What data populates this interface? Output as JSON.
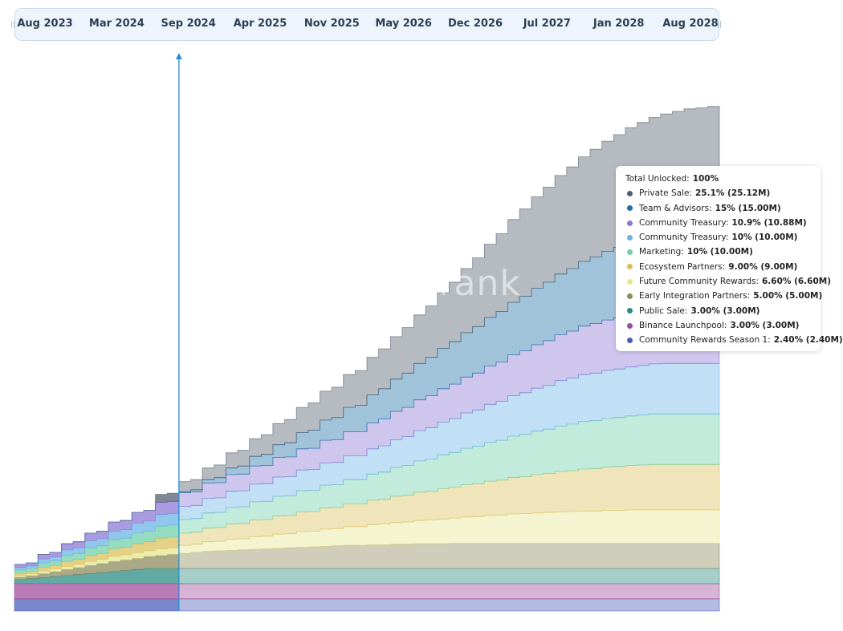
{
  "watermark": "cryptorank",
  "timeline": {
    "ticks": [
      "Aug 2023",
      "Mar 2024",
      "Sep 2024",
      "Apr 2025",
      "Nov 2025",
      "May 2026",
      "Dec 2026",
      "Jul 2027",
      "Jan 2028",
      "Aug 2028"
    ]
  },
  "tooltip": {
    "total_label": "Total Unlocked:",
    "total_value": "100%",
    "items": [
      {
        "label": "Private Sale:",
        "value": "25.1% (25.12M)",
        "color": "#525e6e"
      },
      {
        "label": "Team & Advisors:",
        "value": "15% (15.00M)",
        "color": "#1f6fa8"
      },
      {
        "label": "Community Treasury:",
        "value": "10.9% (10.88M)",
        "color": "#8a78d4"
      },
      {
        "label": "Community Treasury:",
        "value": "10% (10.00M)",
        "color": "#6cb3e6"
      },
      {
        "label": "Marketing:",
        "value": "10% (10.00M)",
        "color": "#6fcfaa"
      },
      {
        "label": "Ecosystem Partners:",
        "value": "9.00% (9.00M)",
        "color": "#dbbf5c"
      },
      {
        "label": "Future Community Rewards:",
        "value": "6.60% (6.60M)",
        "color": "#e5e68e"
      },
      {
        "label": "Early Integration Partners:",
        "value": "5.00% (5.00M)",
        "color": "#8a8a5e"
      },
      {
        "label": "Public Sale:",
        "value": "3.00% (3.00M)",
        "color": "#2a8a84"
      },
      {
        "label": "Binance Launchpool:",
        "value": "3.00% (3.00M)",
        "color": "#a04c9a"
      },
      {
        "label": "Community Rewards Season 1:",
        "value": "2.40% (2.40M)",
        "color": "#4a5db8"
      }
    ]
  },
  "chart_data": {
    "type": "area",
    "stacked": true,
    "step": true,
    "x_unit": "months since Aug 2023",
    "x_range": [
      0,
      60
    ],
    "y_unit": "tokens (M)",
    "y_range": [
      0,
      100
    ],
    "marker_month": 14,
    "series": [
      {
        "name": "Community Rewards Season 1",
        "color": "#4a5db8",
        "values": [
          2.4,
          2.4,
          2.4,
          2.4,
          2.4,
          2.4,
          2.4,
          2.4,
          2.4,
          2.4,
          2.4,
          2.4,
          2.4,
          2.4,
          2.4,
          2.4,
          2.4,
          2.4,
          2.4,
          2.4,
          2.4,
          2.4,
          2.4,
          2.4,
          2.4,
          2.4,
          2.4,
          2.4,
          2.4,
          2.4,
          2.4,
          2.4,
          2.4,
          2.4,
          2.4,
          2.4,
          2.4,
          2.4,
          2.4,
          2.4,
          2.4,
          2.4,
          2.4,
          2.4,
          2.4,
          2.4,
          2.4,
          2.4,
          2.4,
          2.4,
          2.4,
          2.4,
          2.4,
          2.4,
          2.4,
          2.4,
          2.4,
          2.4,
          2.4,
          2.4,
          2.4
        ]
      },
      {
        "name": "Binance Launchpool",
        "color": "#a04c9a",
        "values": [
          3.0,
          3.0,
          3.0,
          3.0,
          3.0,
          3.0,
          3.0,
          3.0,
          3.0,
          3.0,
          3.0,
          3.0,
          3.0,
          3.0,
          3.0,
          3.0,
          3.0,
          3.0,
          3.0,
          3.0,
          3.0,
          3.0,
          3.0,
          3.0,
          3.0,
          3.0,
          3.0,
          3.0,
          3.0,
          3.0,
          3.0,
          3.0,
          3.0,
          3.0,
          3.0,
          3.0,
          3.0,
          3.0,
          3.0,
          3.0,
          3.0,
          3.0,
          3.0,
          3.0,
          3.0,
          3.0,
          3.0,
          3.0,
          3.0,
          3.0,
          3.0,
          3.0,
          3.0,
          3.0,
          3.0,
          3.0,
          3.0,
          3.0,
          3.0,
          3.0,
          3.0
        ]
      },
      {
        "name": "Public Sale",
        "color": "#2a8a84",
        "values": [
          0.8,
          1.0,
          1.2,
          1.4,
          1.6,
          1.8,
          2.0,
          2.2,
          2.4,
          2.6,
          2.8,
          3.0,
          3.0,
          3.0,
          3.0,
          3.0,
          3.0,
          3.0,
          3.0,
          3.0,
          3.0,
          3.0,
          3.0,
          3.0,
          3.0,
          3.0,
          3.0,
          3.0,
          3.0,
          3.0,
          3.0,
          3.0,
          3.0,
          3.0,
          3.0,
          3.0,
          3.0,
          3.0,
          3.0,
          3.0,
          3.0,
          3.0,
          3.0,
          3.0,
          3.0,
          3.0,
          3.0,
          3.0,
          3.0,
          3.0,
          3.0,
          3.0,
          3.0,
          3.0,
          3.0,
          3.0,
          3.0,
          3.0,
          3.0,
          3.0,
          3.0
        ]
      },
      {
        "name": "Early Integration Partners",
        "color": "#8a8a5e",
        "values": [
          0.5,
          0.6,
          0.8,
          1.0,
          1.2,
          1.4,
          1.6,
          1.8,
          2.0,
          2.1,
          2.2,
          2.4,
          2.6,
          2.8,
          3.0,
          3.2,
          3.4,
          3.5,
          3.6,
          3.7,
          3.8,
          3.9,
          4.0,
          4.1,
          4.2,
          4.3,
          4.4,
          4.5,
          4.6,
          4.6,
          4.7,
          4.7,
          4.8,
          4.8,
          4.9,
          4.9,
          4.9,
          5.0,
          5.0,
          5.0,
          5.0,
          5.0,
          5.0,
          5.0,
          5.0,
          5.0,
          5.0,
          5.0,
          5.0,
          5.0,
          5.0,
          5.0,
          5.0,
          5.0,
          5.0,
          5.0,
          5.0,
          5.0,
          5.0,
          5.0,
          5.0
        ]
      },
      {
        "name": "Future Community Rewards",
        "color": "#e5e68e",
        "values": [
          0.3,
          0.3,
          0.5,
          0.5,
          0.6,
          0.6,
          0.8,
          0.8,
          1.0,
          1.0,
          1.1,
          1.1,
          1.3,
          1.3,
          1.6,
          1.6,
          1.9,
          1.9,
          2.2,
          2.2,
          2.5,
          2.5,
          2.8,
          2.8,
          3.1,
          3.1,
          3.4,
          3.4,
          3.7,
          3.7,
          4.0,
          4.1,
          4.3,
          4.4,
          4.6,
          4.7,
          4.9,
          5.0,
          5.2,
          5.3,
          5.5,
          5.6,
          5.8,
          5.9,
          6.0,
          6.1,
          6.2,
          6.3,
          6.4,
          6.4,
          6.5,
          6.5,
          6.6,
          6.6,
          6.6,
          6.6,
          6.6,
          6.6,
          6.6,
          6.6,
          6.6
        ]
      },
      {
        "name": "Ecosystem Partners",
        "color": "#dbbf5c",
        "values": [
          0.5,
          0.5,
          0.7,
          0.7,
          1.0,
          1.0,
          1.2,
          1.2,
          1.5,
          1.5,
          1.8,
          1.8,
          2.1,
          2.1,
          2.4,
          2.4,
          2.7,
          2.7,
          3.0,
          3.0,
          3.3,
          3.3,
          3.6,
          3.6,
          3.9,
          3.9,
          4.2,
          4.2,
          4.5,
          4.5,
          4.8,
          4.9,
          5.2,
          5.3,
          5.6,
          5.7,
          6.0,
          6.1,
          6.4,
          6.5,
          6.8,
          6.9,
          7.2,
          7.3,
          7.6,
          7.7,
          8.0,
          8.1,
          8.3,
          8.4,
          8.6,
          8.7,
          8.8,
          8.9,
          9.0,
          9.0,
          9.0,
          9.0,
          9.0,
          9.0,
          9.0
        ]
      },
      {
        "name": "Marketing",
        "color": "#6fcfaa",
        "values": [
          0.6,
          0.6,
          0.9,
          0.9,
          1.2,
          1.2,
          1.5,
          1.5,
          1.8,
          1.8,
          2.1,
          2.1,
          2.4,
          2.4,
          2.7,
          2.7,
          3.0,
          3.0,
          3.3,
          3.3,
          3.6,
          3.6,
          3.9,
          3.9,
          4.2,
          4.2,
          4.5,
          4.5,
          4.8,
          4.8,
          5.2,
          5.4,
          5.7,
          5.9,
          6.2,
          6.4,
          6.7,
          6.9,
          7.2,
          7.4,
          7.7,
          7.9,
          8.2,
          8.4,
          8.6,
          8.8,
          9.0,
          9.2,
          9.4,
          9.5,
          9.6,
          9.7,
          9.8,
          9.9,
          10.0,
          10.0,
          10.0,
          10.0,
          10.0,
          10.0,
          10.0
        ]
      },
      {
        "name": "Community Treasury",
        "color": "#6cb3e6",
        "values": [
          0.5,
          0.5,
          0.8,
          0.8,
          1.1,
          1.1,
          1.4,
          1.4,
          1.7,
          1.7,
          2.0,
          2.0,
          2.3,
          2.3,
          2.6,
          2.6,
          2.9,
          2.9,
          3.2,
          3.2,
          3.5,
          3.5,
          3.8,
          3.8,
          4.1,
          4.1,
          4.4,
          4.4,
          4.7,
          4.7,
          5.0,
          5.2,
          5.5,
          5.7,
          6.0,
          6.2,
          6.5,
          6.7,
          7.0,
          7.2,
          7.5,
          7.7,
          8.0,
          8.2,
          8.5,
          8.7,
          9.0,
          9.1,
          9.3,
          9.4,
          9.5,
          9.6,
          9.7,
          9.8,
          9.9,
          10.0,
          10.0,
          10.0,
          10.0,
          10.0,
          10.0
        ]
      },
      {
        "name": "Community Treasury",
        "color": "#8a78d4",
        "values": [
          0.6,
          0.6,
          0.9,
          0.9,
          1.2,
          1.2,
          1.5,
          1.5,
          1.8,
          1.8,
          2.1,
          2.1,
          2.4,
          2.4,
          2.7,
          2.7,
          3.0,
          3.0,
          3.3,
          3.3,
          3.6,
          3.6,
          3.9,
          3.9,
          4.2,
          4.2,
          4.5,
          4.5,
          4.8,
          4.8,
          5.1,
          5.3,
          5.6,
          5.8,
          6.1,
          6.3,
          6.6,
          6.8,
          7.1,
          7.3,
          7.6,
          7.8,
          8.1,
          8.3,
          8.6,
          8.8,
          9.1,
          9.3,
          9.6,
          9.8,
          10.0,
          10.1,
          10.3,
          10.4,
          10.5,
          10.6,
          10.7,
          10.8,
          10.8,
          10.88,
          10.88
        ]
      },
      {
        "name": "Team & Advisors",
        "color": "#1f6fa8",
        "values": [
          0.0,
          0.0,
          0.0,
          0.0,
          0.0,
          0.0,
          0.0,
          0.0,
          0.0,
          0.0,
          0.0,
          0.0,
          0.0,
          0.0,
          0.2,
          0.4,
          0.7,
          1.0,
          1.3,
          1.6,
          1.9,
          2.2,
          2.5,
          2.8,
          3.2,
          3.6,
          4.0,
          4.4,
          4.8,
          5.2,
          5.6,
          6.0,
          6.4,
          6.8,
          7.2,
          7.6,
          8.0,
          8.4,
          8.8,
          9.2,
          9.6,
          10.0,
          10.4,
          10.8,
          11.2,
          11.6,
          12.0,
          12.4,
          12.8,
          13.2,
          13.6,
          14.0,
          14.3,
          14.5,
          14.7,
          14.8,
          14.9,
          15.0,
          15.0,
          15.0,
          15.0
        ]
      },
      {
        "name": "Private Sale",
        "color": "#525e6e",
        "values": [
          0.0,
          0.0,
          0.0,
          0.0,
          0.0,
          0.0,
          0.0,
          0.0,
          0.0,
          0.0,
          0.0,
          0.0,
          1.6,
          1.6,
          2.0,
          2.0,
          2.3,
          2.5,
          3.0,
          3.1,
          3.5,
          3.9,
          4.2,
          4.6,
          5.0,
          5.4,
          5.7,
          6.0,
          6.5,
          6.9,
          7.4,
          7.9,
          8.4,
          9.0,
          9.6,
          10.2,
          11.0,
          11.8,
          12.7,
          13.6,
          14.5,
          15.4,
          16.4,
          17.3,
          18.1,
          18.8,
          19.5,
          20.1,
          20.7,
          21.3,
          21.8,
          22.3,
          22.8,
          23.2,
          23.6,
          24.0,
          24.3,
          24.6,
          24.8,
          25.0,
          25.12
        ]
      }
    ]
  }
}
